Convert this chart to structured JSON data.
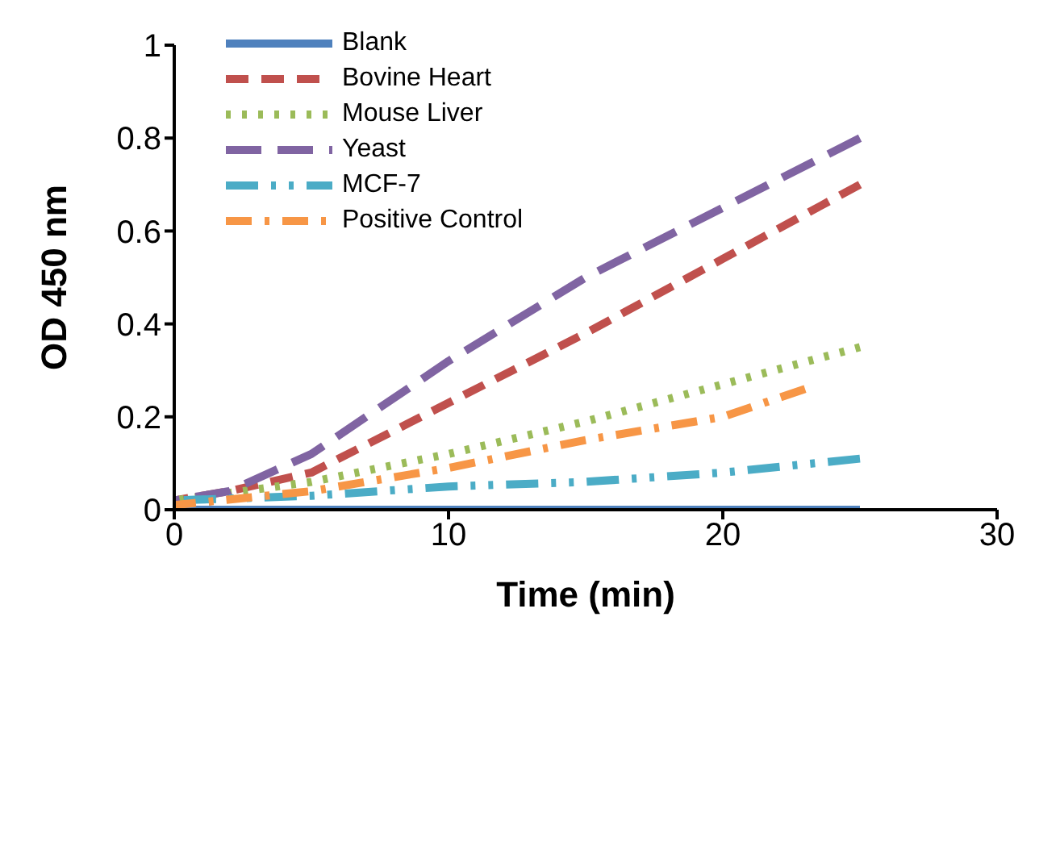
{
  "chart_data": {
    "type": "line",
    "xlabel": "Time (min)",
    "ylabel": "OD 450 nm",
    "xlim": [
      0,
      30
    ],
    "xticks": [
      0,
      10,
      20,
      30
    ],
    "ylim": [
      0,
      1
    ],
    "yticks": [
      0,
      0.2,
      0.4,
      0.6,
      0.8,
      1
    ],
    "grid": false,
    "legend": "top left",
    "marker": "none",
    "series": [
      {
        "name": "Blank",
        "color": "#4f81bd",
        "line_style": "solid",
        "x": [
          0,
          5,
          10,
          15,
          20,
          25
        ],
        "values": [
          0,
          0,
          0,
          0,
          0,
          0
        ]
      },
      {
        "name": "Bovine Heart",
        "color": "#c0504d",
        "line_style": "dashed",
        "x": [
          0,
          2,
          5,
          10,
          15,
          20,
          25
        ],
        "values": [
          0.02,
          0.04,
          0.08,
          0.23,
          0.38,
          0.54,
          0.7
        ]
      },
      {
        "name": "Mouse Liver",
        "color": "#9bbb59",
        "line_style": "dotted",
        "x": [
          0,
          5,
          10,
          15,
          20,
          25
        ],
        "values": [
          0.02,
          0.06,
          0.12,
          0.19,
          0.27,
          0.35
        ]
      },
      {
        "name": "Yeast",
        "color": "#8064a2",
        "line_style": "dashed",
        "x": [
          0,
          2,
          5,
          10,
          15,
          20,
          25
        ],
        "values": [
          0.02,
          0.04,
          0.12,
          0.32,
          0.5,
          0.65,
          0.8
        ]
      },
      {
        "name": "MCF-7",
        "color": "#4bacc6",
        "line_style": "dashed",
        "x": [
          0,
          5,
          10,
          15,
          20,
          25
        ],
        "values": [
          0.02,
          0.03,
          0.05,
          0.06,
          0.08,
          0.11
        ]
      },
      {
        "name": "Positive Control",
        "color": "#f79646",
        "line_style": "dashed",
        "x": [
          0,
          5,
          10,
          15,
          20,
          23
        ],
        "values": [
          0.01,
          0.04,
          0.09,
          0.15,
          0.2,
          0.26
        ]
      }
    ]
  }
}
